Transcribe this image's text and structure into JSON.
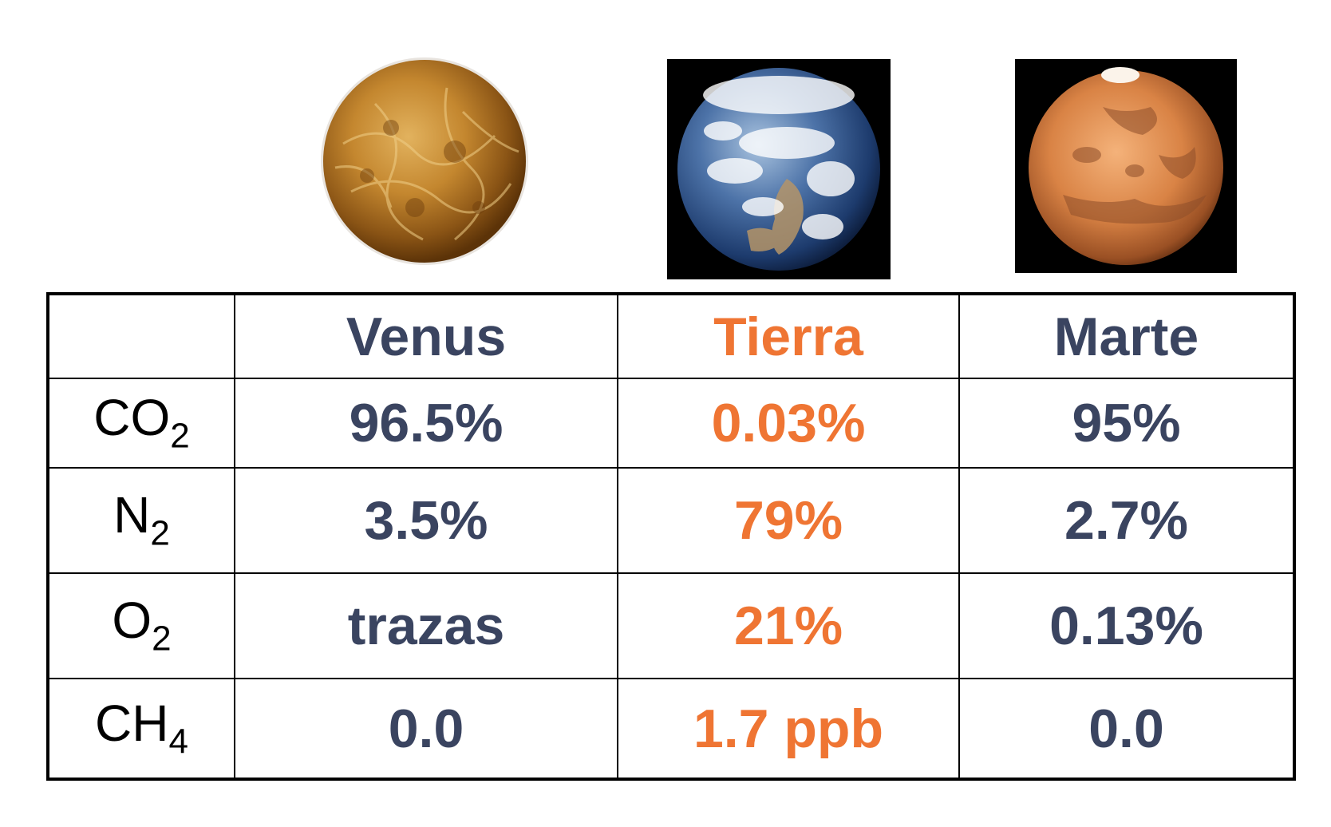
{
  "planets": [
    {
      "name": "Venus",
      "image": "venus-photo",
      "color": "#3a4460"
    },
    {
      "name": "Tierra",
      "image": "earth-photo",
      "color": "#ef7533"
    },
    {
      "name": "Marte",
      "image": "mars-photo",
      "color": "#3a4460"
    }
  ],
  "table": {
    "rows": [
      {
        "gas": "CO",
        "sub": "2",
        "values": [
          "96.5%",
          "0.03%",
          "95%"
        ]
      },
      {
        "gas": "N",
        "sub": "2",
        "values": [
          "3.5%",
          "79%",
          "2.7%"
        ]
      },
      {
        "gas": "O",
        "sub": "2",
        "values": [
          "trazas",
          "21%",
          "0.13%"
        ]
      },
      {
        "gas": "CH",
        "sub": "4",
        "values": [
          "0.0",
          "1.7 ppb",
          "0.0"
        ]
      }
    ]
  },
  "colors": {
    "dark": "#3a4460",
    "orange": "#ef7533",
    "border": "#000000"
  }
}
